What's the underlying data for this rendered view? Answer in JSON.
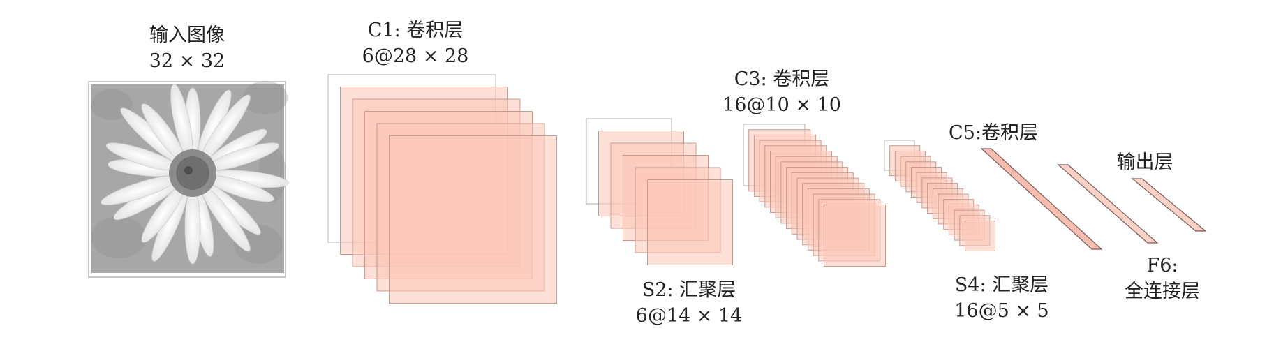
{
  "input": {
    "title": "输入图像",
    "size": "32 × 32"
  },
  "c1": {
    "title": "C1: 卷积层",
    "size": "6@28 × 28",
    "maps": 6
  },
  "s2": {
    "title": "S2: 汇聚层",
    "size": "6@14 × 14",
    "maps": 6
  },
  "c3": {
    "title": "C3: 卷积层",
    "size": "16@10 × 10",
    "maps": 16
  },
  "s4": {
    "title": "S4: 汇聚层",
    "size": "16@5 × 5",
    "maps": 16
  },
  "c5": {
    "title": "C5:卷积层"
  },
  "f6": {
    "title": "F6:",
    "subtitle": "全连接层"
  },
  "output": {
    "title": "输出层"
  },
  "colors": {
    "map_fill": "#fbc6b8",
    "map_stroke": "#c99a90",
    "bar_fill": "#f4b3a2",
    "bar_stroke": "#7a5a56"
  }
}
